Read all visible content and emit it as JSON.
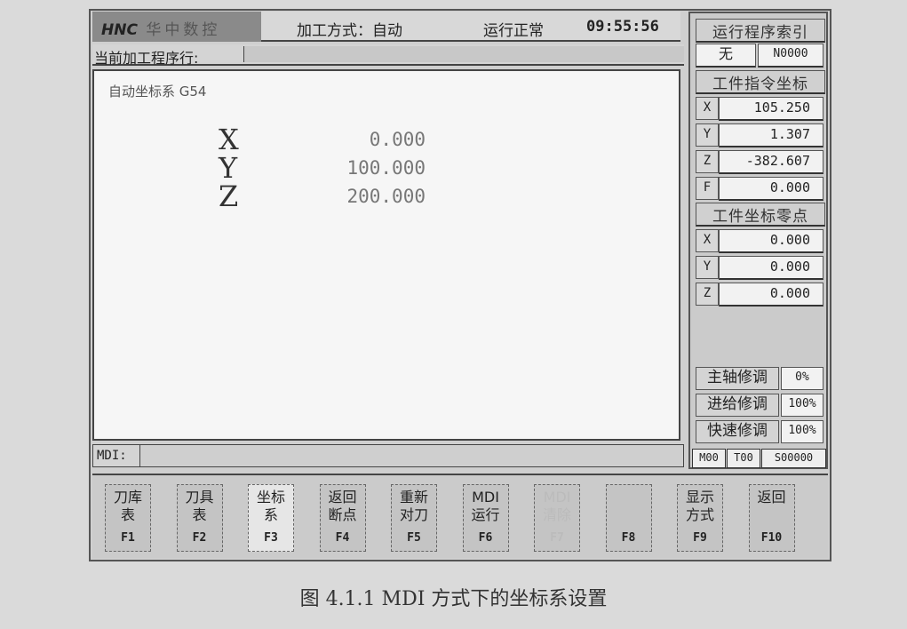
{
  "title_bar": {
    "logo_mark": "HNC",
    "logo_text": "华中数控",
    "mode": "加工方式：自动",
    "status": "运行正常",
    "time": "09:55:56"
  },
  "program_line": {
    "label": "当前加工程序行:",
    "value": ""
  },
  "main": {
    "coord_system": "自动坐标系 G54",
    "axes": [
      {
        "axis": "X",
        "value": "0.000"
      },
      {
        "axis": "Y",
        "value": "100.000"
      },
      {
        "axis": "Z",
        "value": "200.000"
      }
    ]
  },
  "mdi": {
    "label": "MDI:",
    "value": ""
  },
  "side": {
    "index_header": "运行程序索引",
    "index_prog": "无",
    "index_line": "N0000",
    "cmd_header": "工件指令坐标",
    "cmd": [
      {
        "k": "X",
        "v": "105.250"
      },
      {
        "k": "Y",
        "v": "1.307"
      },
      {
        "k": "Z",
        "v": "-382.607"
      },
      {
        "k": "F",
        "v": "0.000"
      }
    ],
    "zero_header": "工件坐标零点",
    "zero": [
      {
        "k": "X",
        "v": "0.000"
      },
      {
        "k": "Y",
        "v": "0.000"
      },
      {
        "k": "Z",
        "v": "0.000"
      }
    ],
    "overrides": [
      {
        "k": "主轴修调",
        "v": "0%"
      },
      {
        "k": "进给修调",
        "v": "100%"
      },
      {
        "k": "快速修调",
        "v": "100%"
      }
    ],
    "status": [
      "M00",
      "T00",
      "S00000"
    ]
  },
  "function_keys": [
    {
      "l1": "刀库",
      "l2": "表",
      "f": "F1",
      "state": "normal"
    },
    {
      "l1": "刀具",
      "l2": "表",
      "f": "F2",
      "state": "normal"
    },
    {
      "l1": "坐标",
      "l2": "系",
      "f": "F3",
      "state": "selected"
    },
    {
      "l1": "返回",
      "l2": "断点",
      "f": "F4",
      "state": "normal"
    },
    {
      "l1": "重新",
      "l2": "对刀",
      "f": "F5",
      "state": "normal"
    },
    {
      "l1": "MDI",
      "l2": "运行",
      "f": "F6",
      "state": "normal"
    },
    {
      "l1": "MDI",
      "l2": "清除",
      "f": "F7",
      "state": "disabled"
    },
    {
      "l1": "",
      "l2": "",
      "f": "F8",
      "state": "normal"
    },
    {
      "l1": "显示",
      "l2": "方式",
      "f": "F9",
      "state": "normal"
    },
    {
      "l1": "返回",
      "l2": "",
      "f": "F10",
      "state": "normal"
    }
  ],
  "caption": "图 4.1.1 MDI 方式下的坐标系设置"
}
